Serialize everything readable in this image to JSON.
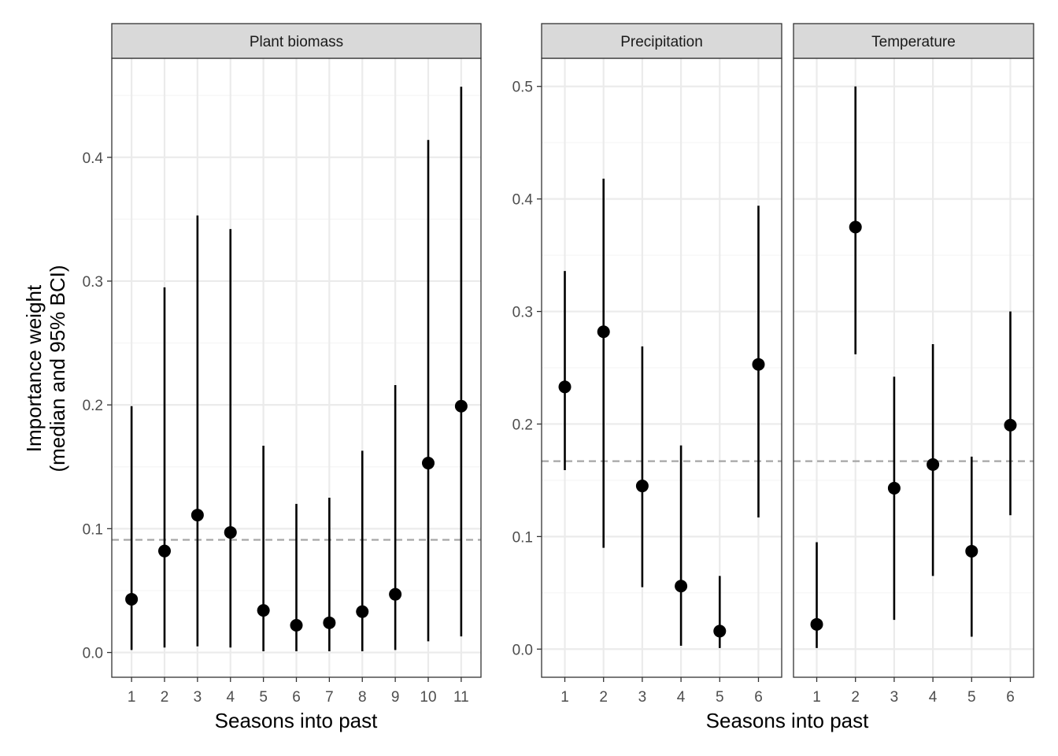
{
  "chart_data": [
    {
      "type": "errorbar",
      "facet": "Plant biomass",
      "xlabel": "Seasons into past",
      "ylabel": [
        "Importance weight",
        "(median and 95% BCI)"
      ],
      "x": [
        1,
        2,
        3,
        4,
        5,
        6,
        7,
        8,
        9,
        10,
        11
      ],
      "median": [
        0.043,
        0.082,
        0.111,
        0.097,
        0.034,
        0.022,
        0.024,
        0.033,
        0.047,
        0.153,
        0.199
      ],
      "lower": [
        0.002,
        0.004,
        0.005,
        0.004,
        0.001,
        0.001,
        0.001,
        0.001,
        0.002,
        0.009,
        0.013
      ],
      "upper": [
        0.199,
        0.295,
        0.353,
        0.342,
        0.167,
        0.12,
        0.125,
        0.163,
        0.216,
        0.414,
        0.457
      ],
      "reference_line": 0.091,
      "xticks": [
        "1",
        "2",
        "3",
        "4",
        "5",
        "6",
        "7",
        "8",
        "9",
        "10",
        "11"
      ],
      "yticks": [
        "0.0",
        "0.1",
        "0.2",
        "0.3",
        "0.4"
      ],
      "ylim": [
        -0.02,
        0.48
      ],
      "grid": true
    },
    {
      "type": "errorbar",
      "facet": "Precipitation",
      "xlabel": "Seasons into past",
      "x": [
        1,
        2,
        3,
        4,
        5,
        6
      ],
      "median": [
        0.233,
        0.282,
        0.145,
        0.056,
        0.016,
        0.253
      ],
      "lower": [
        0.159,
        0.09,
        0.055,
        0.003,
        0.001,
        0.117
      ],
      "upper": [
        0.336,
        0.418,
        0.269,
        0.181,
        0.065,
        0.394
      ],
      "reference_line": 0.167,
      "xticks": [
        "1",
        "2",
        "3",
        "4",
        "5",
        "6"
      ],
      "yticks": [
        "0.0",
        "0.1",
        "0.2",
        "0.3",
        "0.4",
        "0.5"
      ],
      "ylim": [
        -0.025,
        0.525
      ],
      "grid": true
    },
    {
      "type": "errorbar",
      "facet": "Temperature",
      "xlabel": "Seasons into past",
      "x": [
        1,
        2,
        3,
        4,
        5,
        6
      ],
      "median": [
        0.022,
        0.375,
        0.143,
        0.164,
        0.087,
        0.199
      ],
      "lower": [
        0.001,
        0.262,
        0.026,
        0.065,
        0.011,
        0.119
      ],
      "upper": [
        0.095,
        0.5,
        0.242,
        0.271,
        0.171,
        0.3
      ],
      "reference_line": 0.167,
      "xticks": [
        "1",
        "2",
        "3",
        "4",
        "5",
        "6"
      ],
      "yticks": [
        "0.0",
        "0.1",
        "0.2",
        "0.3",
        "0.4",
        "0.5"
      ],
      "ylim": [
        -0.025,
        0.525
      ],
      "grid": true
    }
  ],
  "colors": {
    "strip_fill": "#d9d9d9",
    "grid_major": "#ebebeb",
    "grid_minor": "#f5f5f5",
    "points": "#000000",
    "reference_line": "#a6a6a6",
    "axis_text": "#4d4d4d",
    "border": "#333333"
  }
}
